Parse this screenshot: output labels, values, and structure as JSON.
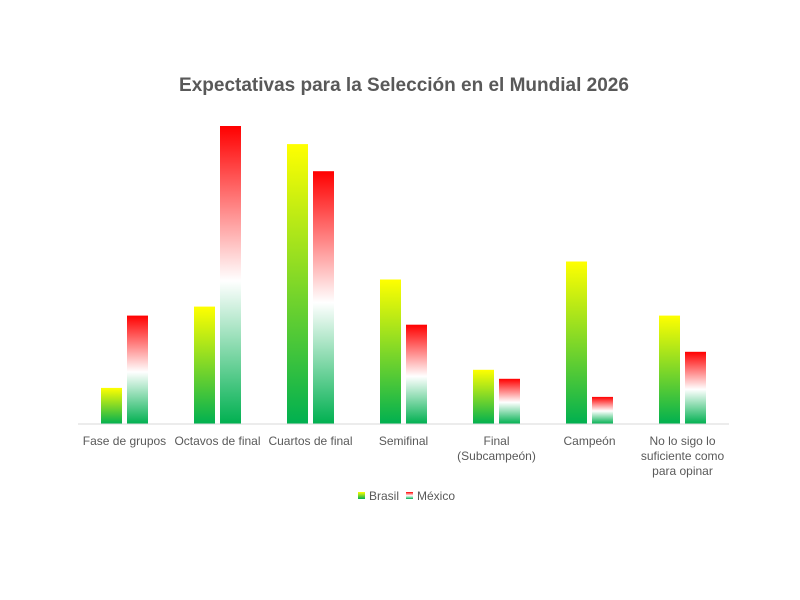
{
  "chart_data": {
    "type": "bar",
    "title": "Expectativas para la Selección en el Mundial 2026",
    "xlabel": "",
    "ylabel": "",
    "ylim": [
      0,
      33
    ],
    "grid": false,
    "legend": "bottom",
    "categories": [
      [
        "Fase de grupos"
      ],
      [
        "Octavos de final"
      ],
      [
        "Cuartos de final"
      ],
      [
        "Semifinal"
      ],
      [
        "Final",
        "(Subcampeón)"
      ],
      [
        "Campeón"
      ],
      [
        "No lo sigo lo",
        "suficiente como",
        "para opinar"
      ]
    ],
    "series": [
      {
        "name": "Brasil",
        "values": [
          4,
          13,
          31,
          16,
          6,
          18,
          12
        ]
      },
      {
        "name": "México",
        "values": [
          12,
          33,
          28,
          11,
          5,
          3,
          8
        ]
      }
    ],
    "colors": {
      "brasil_top": "#ffff00",
      "brasil_bottom": "#00b050",
      "mexico_top": "#ff0000",
      "mexico_mid": "#ffffff",
      "mexico_bottom": "#00b050",
      "axis": "#d9d9d9",
      "text": "#595959"
    }
  }
}
